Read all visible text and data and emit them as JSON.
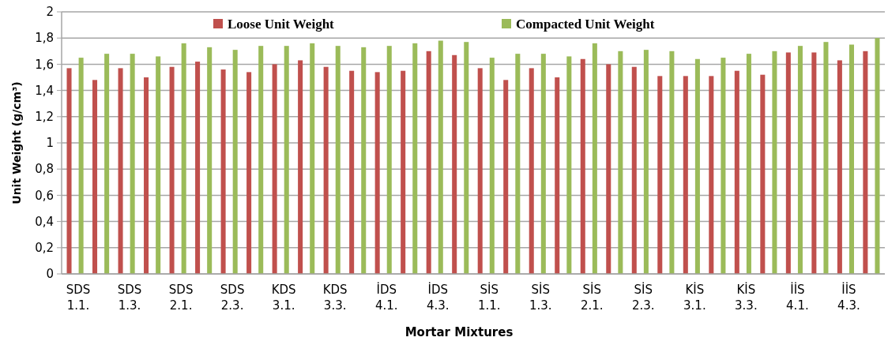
{
  "chart_data": {
    "type": "bar",
    "xlabel": "Mortar Mixtures",
    "ylabel": "Unit Weight (g/cm³)",
    "categories": [
      "SDS 1.1.",
      null,
      "SDS 1.3.",
      null,
      "SDS 2.1.",
      null,
      "SDS 2.3.",
      null,
      "KDS 3.1.",
      null,
      "KDS 3.3.",
      null,
      "İDS 4.1.",
      null,
      "İDS 4.3.",
      null,
      "SİS 1.1.",
      null,
      "SİS 1.3.",
      null,
      "SİS 2.1.",
      null,
      "SİS 2.3.",
      null,
      "KİS 3.1.",
      null,
      "KİS 3.3.",
      null,
      "İİS 4.1.",
      null,
      "İİS 4.3.",
      null
    ],
    "series": [
      {
        "name": "Loose Unit Weight",
        "color": "#c0504d",
        "values": [
          1.57,
          1.48,
          1.57,
          1.5,
          1.58,
          1.62,
          1.56,
          1.54,
          1.6,
          1.63,
          1.58,
          1.55,
          1.54,
          1.55,
          1.7,
          1.67,
          1.57,
          1.48,
          1.57,
          1.5,
          1.64,
          1.6,
          1.58,
          1.51,
          1.51,
          1.51,
          1.55,
          1.52,
          1.69,
          1.69,
          1.63,
          1.7
        ]
      },
      {
        "name": "Compacted Unit Weight",
        "color": "#9bbb59",
        "values": [
          1.65,
          1.68,
          1.68,
          1.66,
          1.76,
          1.73,
          1.71,
          1.74,
          1.74,
          1.76,
          1.74,
          1.73,
          1.74,
          1.76,
          1.78,
          1.77,
          1.65,
          1.68,
          1.68,
          1.66,
          1.76,
          1.7,
          1.71,
          1.7,
          1.64,
          1.65,
          1.68,
          1.7,
          1.74,
          1.77,
          1.75,
          1.8
        ]
      }
    ],
    "ylim": [
      0,
      2
    ],
    "yticks": [
      0,
      {
        "value": 0.2,
        "label": "0,2"
      },
      {
        "value": 0.4,
        "label": "0,4"
      },
      {
        "value": 0.6,
        "label": "0,6"
      },
      {
        "value": 0.8,
        "label": "0,8"
      },
      1,
      {
        "value": 1.2,
        "label": "1,2"
      },
      {
        "value": 1.4,
        "label": "1,4"
      },
      {
        "value": 1.6,
        "label": "1,6"
      },
      {
        "value": 1.8,
        "label": "1,8"
      },
      2
    ],
    "grid": "y",
    "legend": "top"
  }
}
